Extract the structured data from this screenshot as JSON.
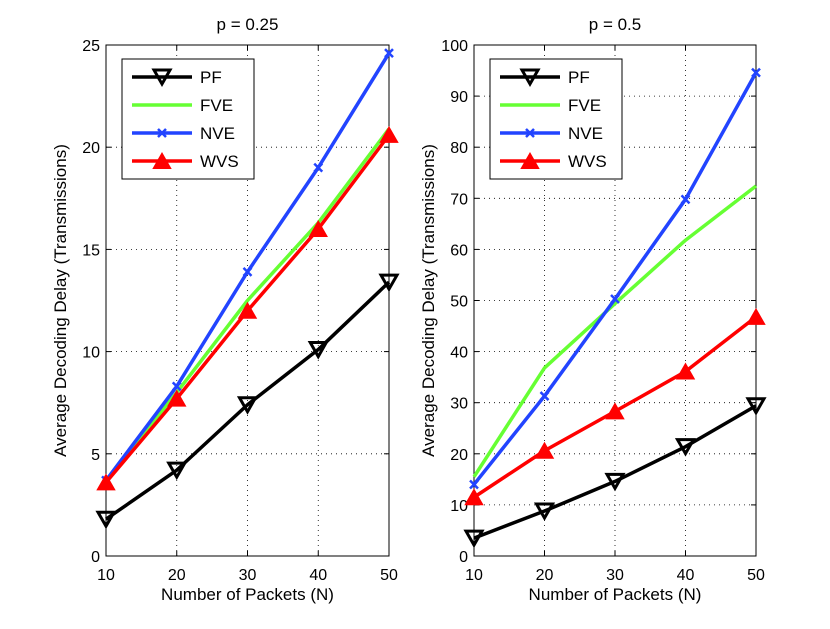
{
  "chart_data": [
    {
      "type": "line",
      "title": "p = 0.25",
      "xlabel": "Number of Packets (N)",
      "ylabel": "Average Decoding Delay (Transmissions)",
      "x": [
        10,
        20,
        30,
        40,
        50
      ],
      "xlim": [
        10,
        50
      ],
      "ylim": [
        0,
        25
      ],
      "xticks": [
        10,
        20,
        30,
        40,
        50
      ],
      "yticks": [
        0,
        5,
        10,
        15,
        20,
        25
      ],
      "grid": true,
      "legend": "top-left",
      "series": [
        {
          "name": "PF",
          "color": "#000000",
          "marker": "triangle-down",
          "values": [
            1.8,
            4.2,
            7.4,
            10.1,
            13.4
          ]
        },
        {
          "name": "FVE",
          "color": "#66ff33",
          "marker": "none",
          "values": [
            3.7,
            8.0,
            12.5,
            16.3,
            20.9
          ]
        },
        {
          "name": "NVE",
          "color": "#2244ff",
          "marker": "x",
          "values": [
            3.7,
            8.3,
            13.9,
            19.0,
            24.6
          ]
        },
        {
          "name": "WVS",
          "color": "#ff0000",
          "marker": "triangle-up",
          "values": [
            3.6,
            7.7,
            12.0,
            16.0,
            20.6
          ]
        }
      ]
    },
    {
      "type": "line",
      "title": "p = 0.5",
      "xlabel": "Number of Packets (N)",
      "ylabel": "Average Decoding Delay (Transmissions)",
      "x": [
        10,
        20,
        30,
        40,
        50
      ],
      "xlim": [
        10,
        50
      ],
      "ylim": [
        0,
        100
      ],
      "xticks": [
        10,
        20,
        30,
        40,
        50
      ],
      "yticks": [
        0,
        10,
        20,
        30,
        40,
        50,
        60,
        70,
        80,
        90,
        100
      ],
      "grid": true,
      "legend": "top-left",
      "series": [
        {
          "name": "PF",
          "color": "#000000",
          "marker": "triangle-down",
          "values": [
            3.5,
            8.8,
            14.6,
            21.4,
            29.4
          ]
        },
        {
          "name": "FVE",
          "color": "#66ff33",
          "marker": "none",
          "values": [
            15.5,
            36.8,
            49.4,
            61.8,
            72.4
          ]
        },
        {
          "name": "NVE",
          "color": "#2244ff",
          "marker": "x",
          "values": [
            14.0,
            31.3,
            50.3,
            69.8,
            94.6
          ]
        },
        {
          "name": "WVS",
          "color": "#ff0000",
          "marker": "triangle-up",
          "values": [
            11.5,
            20.6,
            28.3,
            36.1,
            46.8
          ]
        }
      ]
    }
  ]
}
